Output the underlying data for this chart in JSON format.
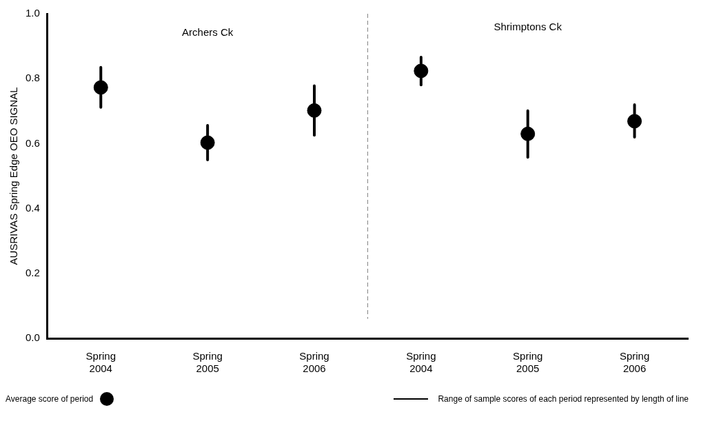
{
  "chart_data": {
    "type": "scatter",
    "ylabel": "AUSRIVAS Spring Edge OEO SIGNAL",
    "categories": [
      "Spring 2004",
      "Spring 2005",
      "Spring 2006",
      "Spring 2004",
      "Spring 2005",
      "Spring 2006"
    ],
    "series": [
      {
        "name": "Average score of period",
        "color": "#000000",
        "values": [
          0.773,
          0.603,
          0.702,
          0.824,
          0.63,
          0.669
        ],
        "errors": [
          [
            0.712,
            0.835
          ],
          [
            0.55,
            0.656
          ],
          [
            0.626,
            0.778
          ],
          [
            0.781,
            0.866
          ],
          [
            0.558,
            0.701
          ],
          [
            0.62,
            0.72
          ]
        ]
      }
    ],
    "ylim": [
      0,
      1
    ],
    "yticks": [
      {
        "value": 0,
        "label": "0.0"
      },
      {
        "value": 0.2,
        "label": "0.2"
      },
      {
        "value": 0.4,
        "label": "0.4"
      },
      {
        "value": 0.6,
        "label": "0.6"
      },
      {
        "value": 0.8,
        "label": "0.8"
      },
      {
        "value": 1,
        "label": "1.0"
      }
    ],
    "annotations": [
      "Archers Ck",
      "Shrimptons Ck",
      "Range of sample scores of each period represented by length of line"
    ],
    "grid": false,
    "legend": "bottom",
    "marker": "circle"
  }
}
